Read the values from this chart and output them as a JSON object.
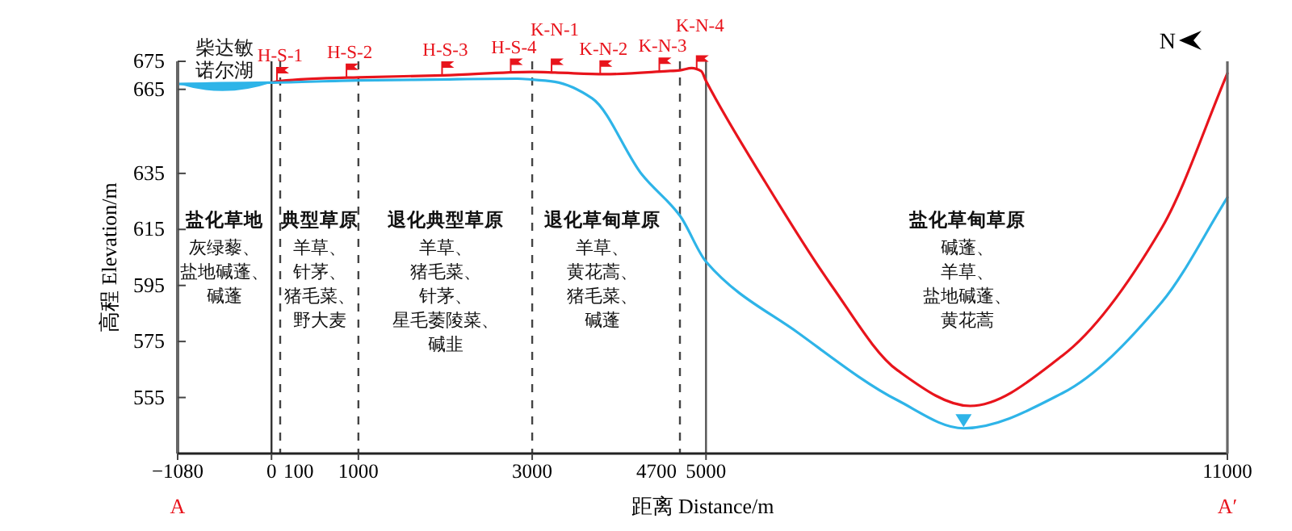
{
  "chart_data": {
    "type": "line",
    "xlabel": "距离 Distance/m",
    "ylabel": "高程 Elevation/m",
    "xlim": [
      -1080,
      11000
    ],
    "xticks": [
      -1080,
      0,
      1000,
      3000,
      5000,
      11000
    ],
    "ylim": [
      535,
      675
    ],
    "yticks": [
      675,
      665,
      635,
      615,
      595,
      575,
      555
    ],
    "series": [
      {
        "color": "#e8141c",
        "x": [
          0,
          100,
          1000,
          1980,
          3000,
          3260,
          3835,
          4555,
          4700,
          4836,
          4945,
          5000,
          5684,
          6444,
          7204,
          8040,
          9104,
          10244,
          11000
        ],
        "values": [
          667.4,
          668,
          669.3,
          670,
          671.2,
          671,
          670.4,
          671.5,
          671.8,
          672.6,
          671.5,
          668,
          631.8,
          595,
          564.7,
          552,
          570,
          615.5,
          670.7
        ]
      },
      {
        "color": "#2eb4e8",
        "x": [
          -1080,
          -700,
          -300,
          0,
          1000,
          1840,
          2830,
          3000,
          3260,
          3690,
          4265,
          4700,
          5000,
          6064,
          7204,
          7964,
          9104,
          10244,
          11000
        ],
        "values": [
          666.9,
          667.1,
          667.3,
          667.4,
          668.2,
          668.5,
          668.8,
          668.5,
          667.7,
          661.8,
          634.5,
          619.9,
          603.5,
          578,
          554,
          544,
          556.6,
          589,
          626.4
        ]
      },
      {
        "type": "scatter",
        "color": "#2eb4e8",
        "x": [
          7964
        ],
        "values": [
          547
        ],
        "marker": "triangle"
      },
      {
        "type": "scatter",
        "color": "#e8141c",
        "x": [
          100,
          900,
          2000,
          2790,
          3260,
          3820,
          4500,
          4930
        ],
        "values": [
          670.4,
          671.6,
          672.4,
          673.4,
          673.4,
          672.8,
          673.8,
          674.6
        ],
        "value_labels": [
          "H-S-1",
          "H-S-2",
          "H-S-3",
          "H-S-4",
          "K-N-1",
          "K-N-2",
          "K-N-3",
          "K-N-4"
        ]
      }
    ],
    "ref_lines": [
      {
        "axis": "x",
        "value": 0,
        "line_style": "solid",
        "color": "#333333"
      },
      {
        "axis": "x",
        "value": 100,
        "line_style": "dashed",
        "color": "#444444",
        "label": "100"
      },
      {
        "axis": "x",
        "value": 1000,
        "line_style": "dashed",
        "color": "#444444"
      },
      {
        "axis": "x",
        "value": 3000,
        "line_style": "dashed",
        "color": "#444444"
      },
      {
        "axis": "x",
        "value": 4700,
        "line_style": "dashed",
        "color": "#444444",
        "label": "4700"
      },
      {
        "axis": "x",
        "value": 5000,
        "line_style": "solid",
        "color": "#555555"
      }
    ],
    "annotations": [
      {
        "text": "柴达敏诺尔湖",
        "x": -540,
        "y": 669.5
      },
      "盐化草地",
      "灰绿藜、盐地碱蓬、碱蓬",
      "典型草原",
      "羊草、针茅、猪毛菜、野大麦",
      "退化典型草原",
      "羊草、猪毛菜、针茅、星毛萎陵菜、碱韭",
      "退化草甸草原",
      "羊草、黄花蒿、猪毛菜、碱蓬",
      "盐化草甸草原",
      "碱蓬、羊草、盐地碱蓬、黄花蒿",
      "N",
      "A",
      "A′"
    ]
  }
}
